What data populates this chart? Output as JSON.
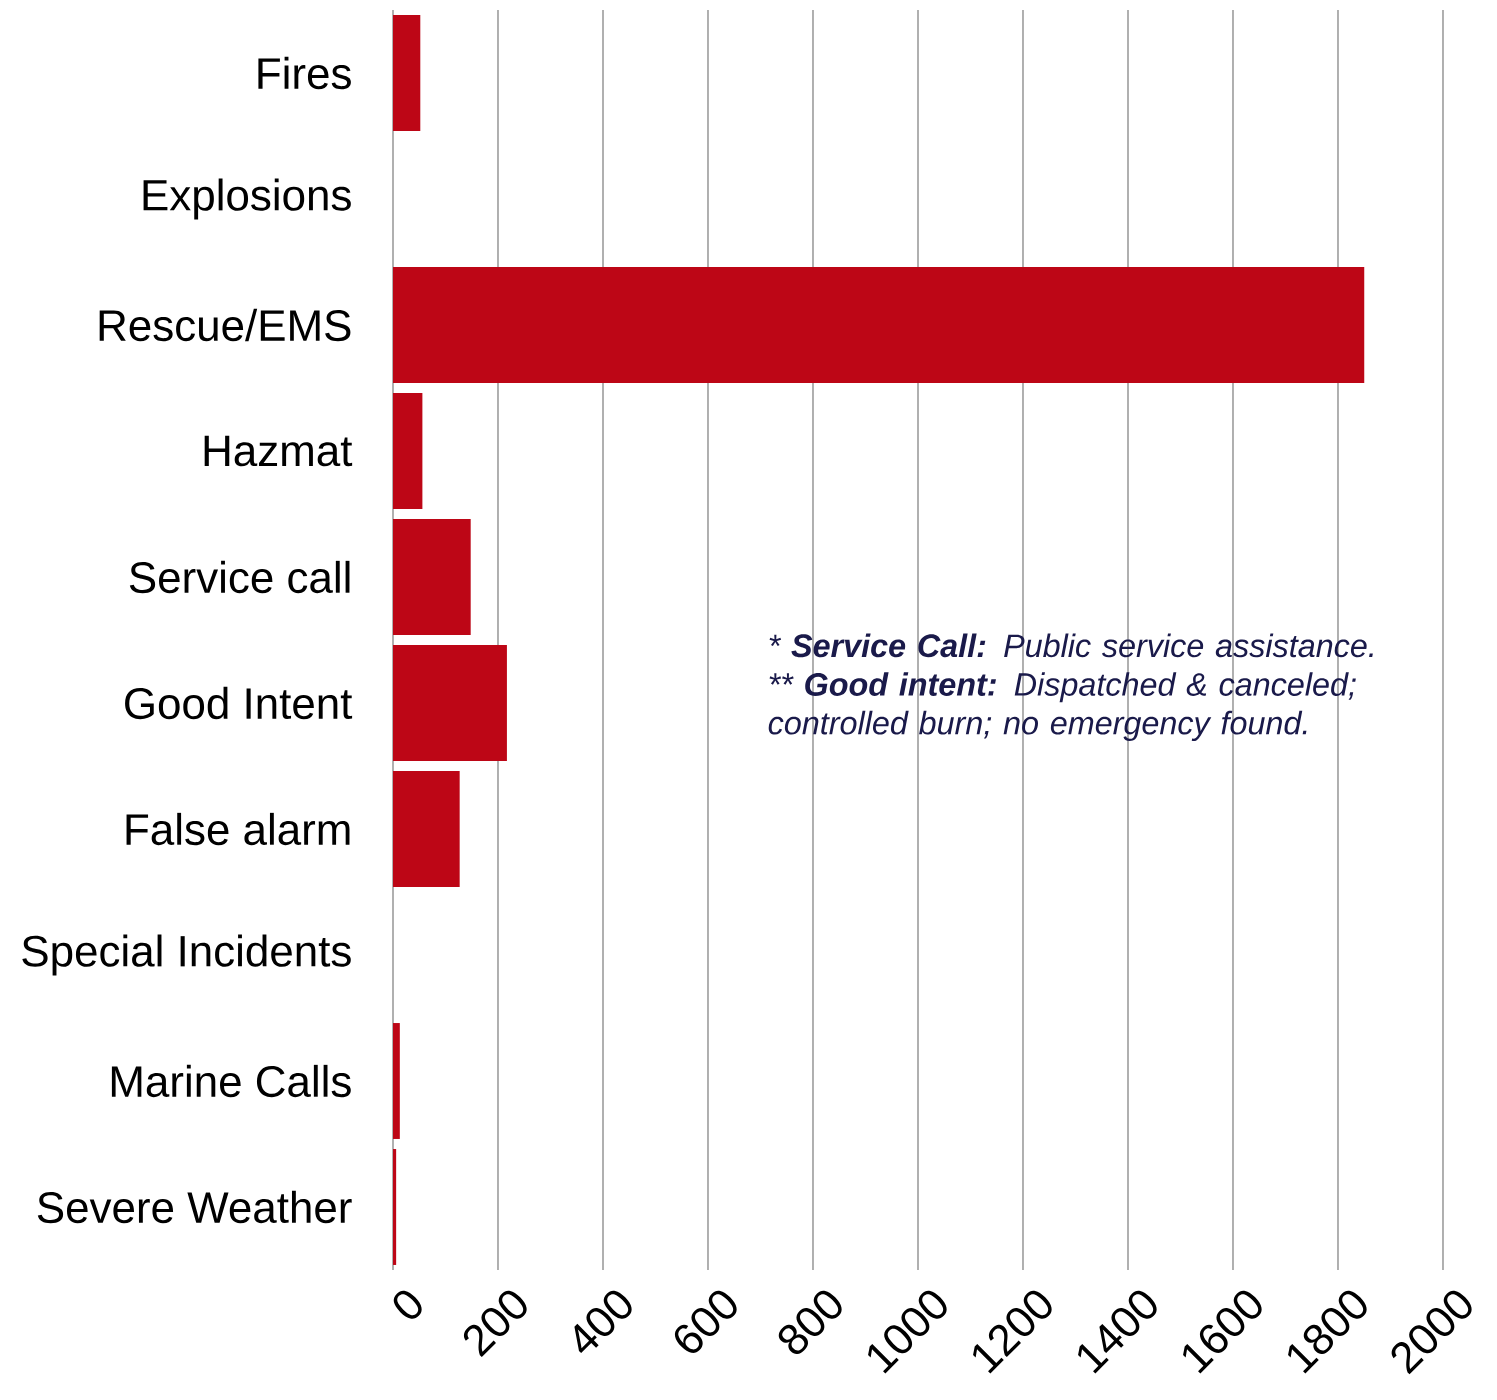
{
  "chart_data": {
    "type": "bar",
    "orientation": "horizontal",
    "categories": [
      "Fires",
      "Explosions",
      "Rescue/EMS",
      "Hazmat",
      "Service call",
      "Good Intent",
      "False alarm",
      "Special Incidents",
      "Marine Calls",
      "Severe Weather"
    ],
    "values": [
      52,
      0,
      1850,
      56,
      148,
      217,
      127,
      0,
      13,
      6
    ],
    "color": "#bd0616",
    "xlim": [
      0,
      2000
    ],
    "xticks": [
      0,
      200,
      400,
      600,
      800,
      1000,
      1200,
      1400,
      1600,
      1800,
      2000
    ],
    "grid": "x",
    "annotations": [
      "* **Service Call:** Public service assistance.",
      "** **Good intent:** Dispatched & canceled; controlled burn; no emergency found."
    ]
  }
}
